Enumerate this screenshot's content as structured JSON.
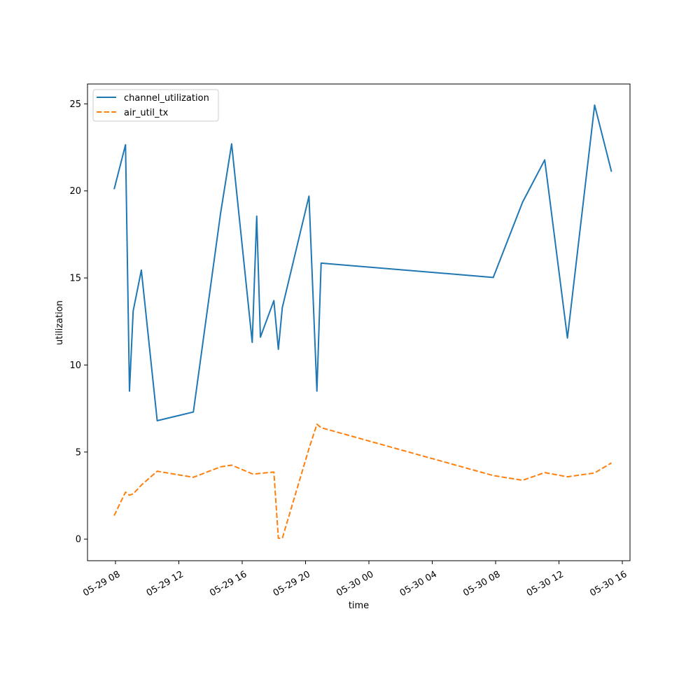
{
  "chart_data": {
    "type": "line",
    "title": "",
    "xlabel": "time",
    "ylabel": "utilization",
    "xlim": [
      "2025-05-29 06:14",
      "2025-05-30 16:29"
    ],
    "ylim": [
      -1.24,
      26.14
    ],
    "grid": false,
    "legend_position": "upper left",
    "x_ticks": [
      {
        "t": "2025-05-29 08:00",
        "label": "05-29 08"
      },
      {
        "t": "2025-05-29 12:00",
        "label": "05-29 12"
      },
      {
        "t": "2025-05-29 16:00",
        "label": "05-29 16"
      },
      {
        "t": "2025-05-29 20:00",
        "label": "05-29 20"
      },
      {
        "t": "2025-05-30 00:00",
        "label": "05-30 00"
      },
      {
        "t": "2025-05-30 04:00",
        "label": "05-30 04"
      },
      {
        "t": "2025-05-30 08:00",
        "label": "05-30 08"
      },
      {
        "t": "2025-05-30 12:00",
        "label": "05-30 12"
      },
      {
        "t": "2025-05-30 16:00",
        "label": "05-30 16"
      }
    ],
    "y_ticks": [
      {
        "v": 0,
        "label": "0"
      },
      {
        "v": 5,
        "label": "5"
      },
      {
        "v": 10,
        "label": "10"
      },
      {
        "v": 15,
        "label": "15"
      },
      {
        "v": 20,
        "label": "20"
      },
      {
        "v": 25,
        "label": "25"
      }
    ],
    "series": [
      {
        "name": "channel_utilization",
        "color": "#1f77b4",
        "dash": "solid",
        "points": [
          [
            "2025-05-29 07:55",
            20.1
          ],
          [
            "2025-05-29 08:38",
            22.65
          ],
          [
            "2025-05-29 08:53",
            8.5
          ],
          [
            "2025-05-29 09:07",
            13.1
          ],
          [
            "2025-05-29 09:38",
            15.45
          ],
          [
            "2025-05-29 10:38",
            6.8
          ],
          [
            "2025-05-29 12:55",
            7.3
          ],
          [
            "2025-05-29 14:38",
            18.7
          ],
          [
            "2025-05-29 15:20",
            22.7
          ],
          [
            "2025-05-29 16:38",
            11.3
          ],
          [
            "2025-05-29 16:55",
            18.55
          ],
          [
            "2025-05-29 17:09",
            11.6
          ],
          [
            "2025-05-29 18:00",
            13.7
          ],
          [
            "2025-05-29 18:17",
            10.9
          ],
          [
            "2025-05-29 18:32",
            13.3
          ],
          [
            "2025-05-29 20:13",
            19.7
          ],
          [
            "2025-05-29 20:43",
            8.5
          ],
          [
            "2025-05-29 20:59",
            15.85
          ],
          [
            "2025-05-30 07:51",
            15.03
          ],
          [
            "2025-05-30 09:42",
            19.35
          ],
          [
            "2025-05-30 11:06",
            21.78
          ],
          [
            "2025-05-30 12:32",
            11.55
          ],
          [
            "2025-05-30 14:15",
            24.93
          ],
          [
            "2025-05-30 15:19",
            21.1
          ]
        ]
      },
      {
        "name": "air_util_tx",
        "color": "#ff7f0e",
        "dash": "dashed",
        "points": [
          [
            "2025-05-29 07:55",
            1.35
          ],
          [
            "2025-05-29 08:38",
            2.7
          ],
          [
            "2025-05-29 08:53",
            2.52
          ],
          [
            "2025-05-29 09:07",
            2.6
          ],
          [
            "2025-05-29 09:38",
            3.1
          ],
          [
            "2025-05-29 10:38",
            3.9
          ],
          [
            "2025-05-29 12:55",
            3.55
          ],
          [
            "2025-05-29 14:38",
            4.15
          ],
          [
            "2025-05-29 15:20",
            4.25
          ],
          [
            "2025-05-29 16:38",
            3.75
          ],
          [
            "2025-05-29 16:55",
            3.75
          ],
          [
            "2025-05-29 17:09",
            3.78
          ],
          [
            "2025-05-29 18:00",
            3.85
          ],
          [
            "2025-05-29 18:17",
            0.05
          ],
          [
            "2025-05-29 18:32",
            0.05
          ],
          [
            "2025-05-29 20:13",
            5.2
          ],
          [
            "2025-05-29 20:43",
            6.6
          ],
          [
            "2025-05-29 20:59",
            6.4
          ],
          [
            "2025-05-30 07:51",
            3.65
          ],
          [
            "2025-05-30 09:42",
            3.38
          ],
          [
            "2025-05-30 11:06",
            3.82
          ],
          [
            "2025-05-30 12:32",
            3.58
          ],
          [
            "2025-05-30 14:15",
            3.8
          ],
          [
            "2025-05-30 15:19",
            4.38
          ]
        ]
      }
    ]
  }
}
